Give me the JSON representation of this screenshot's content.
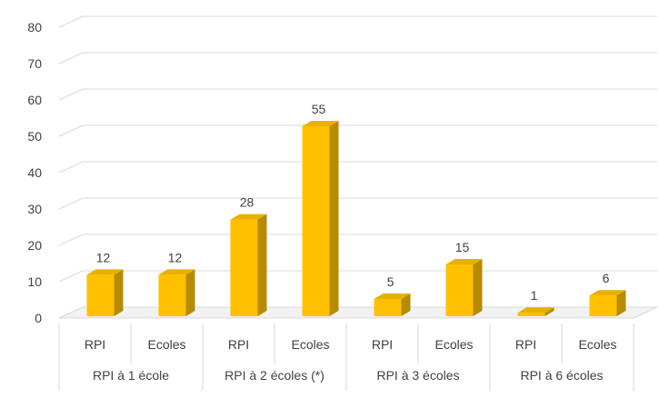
{
  "chart_data": {
    "type": "bar",
    "groups": [
      "RPI à 1 école",
      "RPI à 2 écoles (*)",
      "RPI à 3 écoles",
      "RPI à 6 écoles"
    ],
    "categories": [
      "RPI",
      "Ecoles",
      "RPI",
      "Ecoles",
      "RPI",
      "Ecoles",
      "RPI",
      "Ecoles"
    ],
    "values": [
      12,
      12,
      28,
      55,
      5,
      15,
      1,
      6
    ],
    "data_labels": [
      "12",
      "12",
      "28",
      "55",
      "5",
      "15",
      "1",
      "6"
    ],
    "ylim": [
      0,
      80
    ],
    "yticks": [
      "0",
      "10",
      "20",
      "30",
      "40",
      "50",
      "60",
      "70",
      "80"
    ],
    "title": "",
    "xlabel": "",
    "ylabel": "",
    "grid": true,
    "bar_style": "3d",
    "colors": {
      "bar_front": "#FFC000",
      "bar_top": "#E8B000",
      "bar_side": "#B88A00",
      "grid": "#D9D9D9",
      "text": "#404040"
    }
  }
}
